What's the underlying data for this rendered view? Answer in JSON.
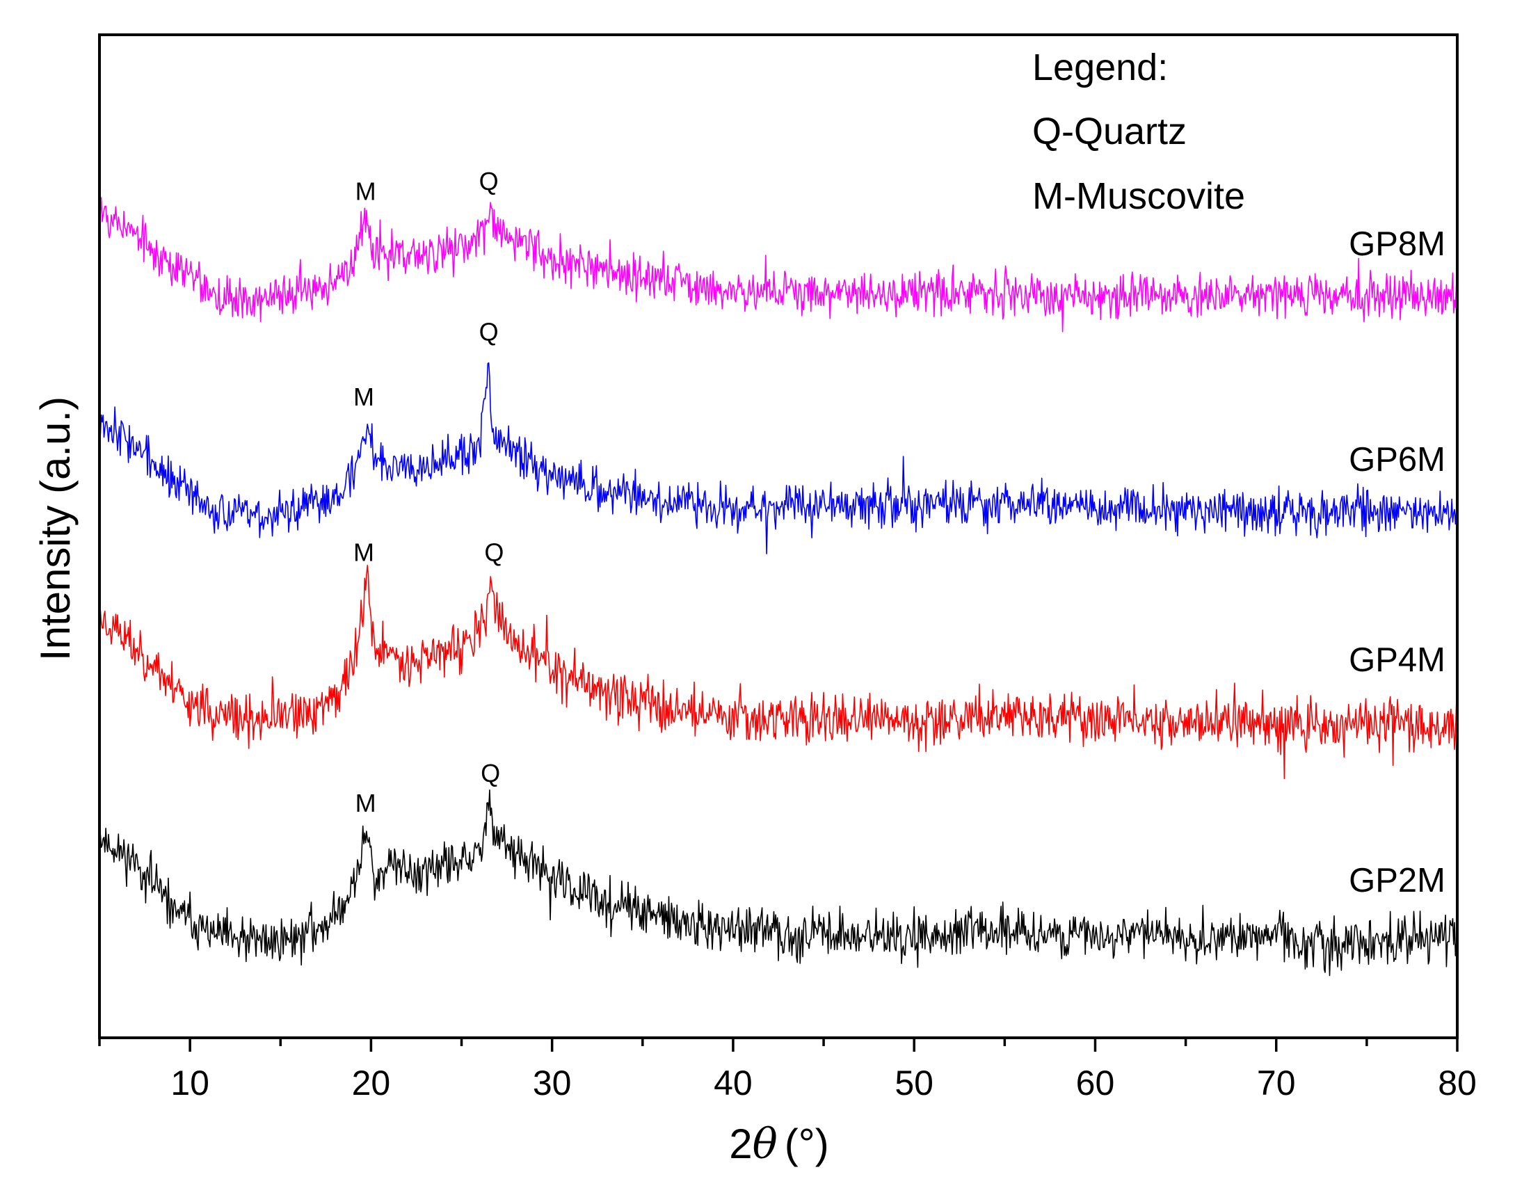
{
  "chart_data": {
    "type": "line",
    "xlabel_prefix": "2",
    "xlabel_symbol": "θ",
    "xlabel_unit": "(°)",
    "ylabel": "Intensity (a.u.)",
    "xlim": [
      5,
      80
    ],
    "ylim": [
      0,
      100
    ],
    "x_ticks": [
      10,
      20,
      30,
      40,
      50,
      60,
      70,
      80
    ],
    "x_tick_labels": [
      "10",
      "20",
      "30",
      "40",
      "50",
      "60",
      "70",
      "80"
    ],
    "grid": false,
    "legend_title": "Legend:",
    "legend_items": [
      "Q-Quartz",
      "M-Muscovite"
    ],
    "series": [
      {
        "name": "GP2M",
        "color": "#000000",
        "baseline": 9,
        "seed": 11,
        "noise": 1.4,
        "profile": [
          [
            5,
            20
          ],
          [
            7,
            17.5
          ],
          [
            9,
            13
          ],
          [
            11,
            10.5
          ],
          [
            13,
            9.5
          ],
          [
            16,
            10
          ],
          [
            18,
            12
          ],
          [
            19,
            15
          ],
          [
            19.6,
            19
          ],
          [
            19.8,
            21
          ],
          [
            20.2,
            16
          ],
          [
            21,
            17
          ],
          [
            23,
            16.5
          ],
          [
            25,
            17.5
          ],
          [
            26,
            18
          ],
          [
            26.4,
            22
          ],
          [
            26.6,
            24
          ],
          [
            26.8,
            21
          ],
          [
            27.5,
            19
          ],
          [
            29,
            17
          ],
          [
            32,
            14
          ],
          [
            35,
            12.5
          ],
          [
            38,
            11
          ],
          [
            42,
            10.5
          ],
          [
            50,
            10
          ],
          [
            55,
            10.8
          ],
          [
            60,
            10
          ],
          [
            62,
            10.5
          ],
          [
            65,
            10
          ],
          [
            70,
            10.3
          ],
          [
            72,
            9
          ],
          [
            75,
            9.5
          ],
          [
            80,
            10
          ]
        ],
        "peaks": [
          {
            "label": "M",
            "x": 19.7,
            "y": 21
          },
          {
            "label": "Q",
            "x": 26.6,
            "y": 24
          }
        ]
      },
      {
        "name": "GP4M",
        "color": "#ff0000",
        "baseline": 30,
        "seed": 23,
        "noise": 1.5,
        "profile": [
          [
            5,
            42
          ],
          [
            7,
            39
          ],
          [
            9,
            35
          ],
          [
            11,
            32.5
          ],
          [
            13,
            31.5
          ],
          [
            16,
            32
          ],
          [
            18,
            34
          ],
          [
            19,
            37
          ],
          [
            19.6,
            43
          ],
          [
            19.8,
            46
          ],
          [
            20.2,
            39
          ],
          [
            21,
            38
          ],
          [
            23,
            38
          ],
          [
            25,
            39
          ],
          [
            26,
            40
          ],
          [
            26.4,
            43
          ],
          [
            26.6,
            46
          ],
          [
            26.8,
            43
          ],
          [
            27.5,
            40
          ],
          [
            29,
            38
          ],
          [
            32,
            35
          ],
          [
            35,
            33.5
          ],
          [
            38,
            32.5
          ],
          [
            42,
            32
          ],
          [
            50,
            31.5
          ],
          [
            55,
            32.5
          ],
          [
            60,
            31.5
          ],
          [
            62,
            32
          ],
          [
            65,
            31.5
          ],
          [
            70,
            31.5
          ],
          [
            72,
            31
          ],
          [
            75,
            31.5
          ],
          [
            80,
            31
          ]
        ],
        "peaks": [
          {
            "label": "M",
            "x": 19.6,
            "y": 46
          },
          {
            "label": "Q",
            "x": 26.8,
            "y": 46
          }
        ]
      },
      {
        "name": "GP6M",
        "color": "#0000ff",
        "baseline": 51,
        "seed": 37,
        "noise": 1.3,
        "profile": [
          [
            5,
            62
          ],
          [
            7,
            59
          ],
          [
            9,
            55.5
          ],
          [
            11,
            53
          ],
          [
            13,
            52
          ],
          [
            16,
            52.5
          ],
          [
            18,
            54
          ],
          [
            19,
            56
          ],
          [
            19.6,
            60
          ],
          [
            19.8,
            61.5
          ],
          [
            20.2,
            58
          ],
          [
            21,
            57
          ],
          [
            23,
            57.5
          ],
          [
            25,
            58
          ],
          [
            26,
            58.5
          ],
          [
            26.3,
            64
          ],
          [
            26.5,
            68
          ],
          [
            26.7,
            60
          ],
          [
            27.5,
            59
          ],
          [
            29,
            57
          ],
          [
            32,
            55
          ],
          [
            35,
            54
          ],
          [
            38,
            53
          ],
          [
            42,
            53
          ],
          [
            50,
            53
          ],
          [
            55,
            53.5
          ],
          [
            60,
            52.5
          ],
          [
            62,
            53
          ],
          [
            65,
            52.5
          ],
          [
            70,
            52.5
          ],
          [
            75,
            52.5
          ],
          [
            80,
            52.5
          ]
        ],
        "peaks": [
          {
            "label": "M",
            "x": 19.6,
            "y": 61.5
          },
          {
            "label": "Q",
            "x": 26.5,
            "y": 68
          }
        ]
      },
      {
        "name": "GP8M",
        "color": "#ff00ff",
        "baseline": 72,
        "seed": 53,
        "noise": 1.3,
        "profile": [
          [
            5,
            83
          ],
          [
            7,
            80
          ],
          [
            9,
            77
          ],
          [
            11,
            74.5
          ],
          [
            13,
            73.5
          ],
          [
            16,
            74
          ],
          [
            18,
            75.5
          ],
          [
            19,
            77
          ],
          [
            19.6,
            81
          ],
          [
            19.8,
            82
          ],
          [
            20.2,
            78
          ],
          [
            21,
            78
          ],
          [
            23,
            78
          ],
          [
            25,
            79
          ],
          [
            26,
            79.5
          ],
          [
            26.4,
            81
          ],
          [
            26.6,
            83
          ],
          [
            26.8,
            81
          ],
          [
            27.5,
            80
          ],
          [
            29,
            78.5
          ],
          [
            32,
            77
          ],
          [
            35,
            76
          ],
          [
            38,
            75
          ],
          [
            42,
            74.5
          ],
          [
            50,
            74
          ],
          [
            55,
            74.5
          ],
          [
            60,
            74
          ],
          [
            65,
            74
          ],
          [
            70,
            74
          ],
          [
            75,
            74
          ],
          [
            80,
            74
          ]
        ],
        "peaks": [
          {
            "label": "M",
            "x": 19.7,
            "y": 82
          },
          {
            "label": "Q",
            "x": 26.5,
            "y": 83
          }
        ]
      }
    ]
  }
}
